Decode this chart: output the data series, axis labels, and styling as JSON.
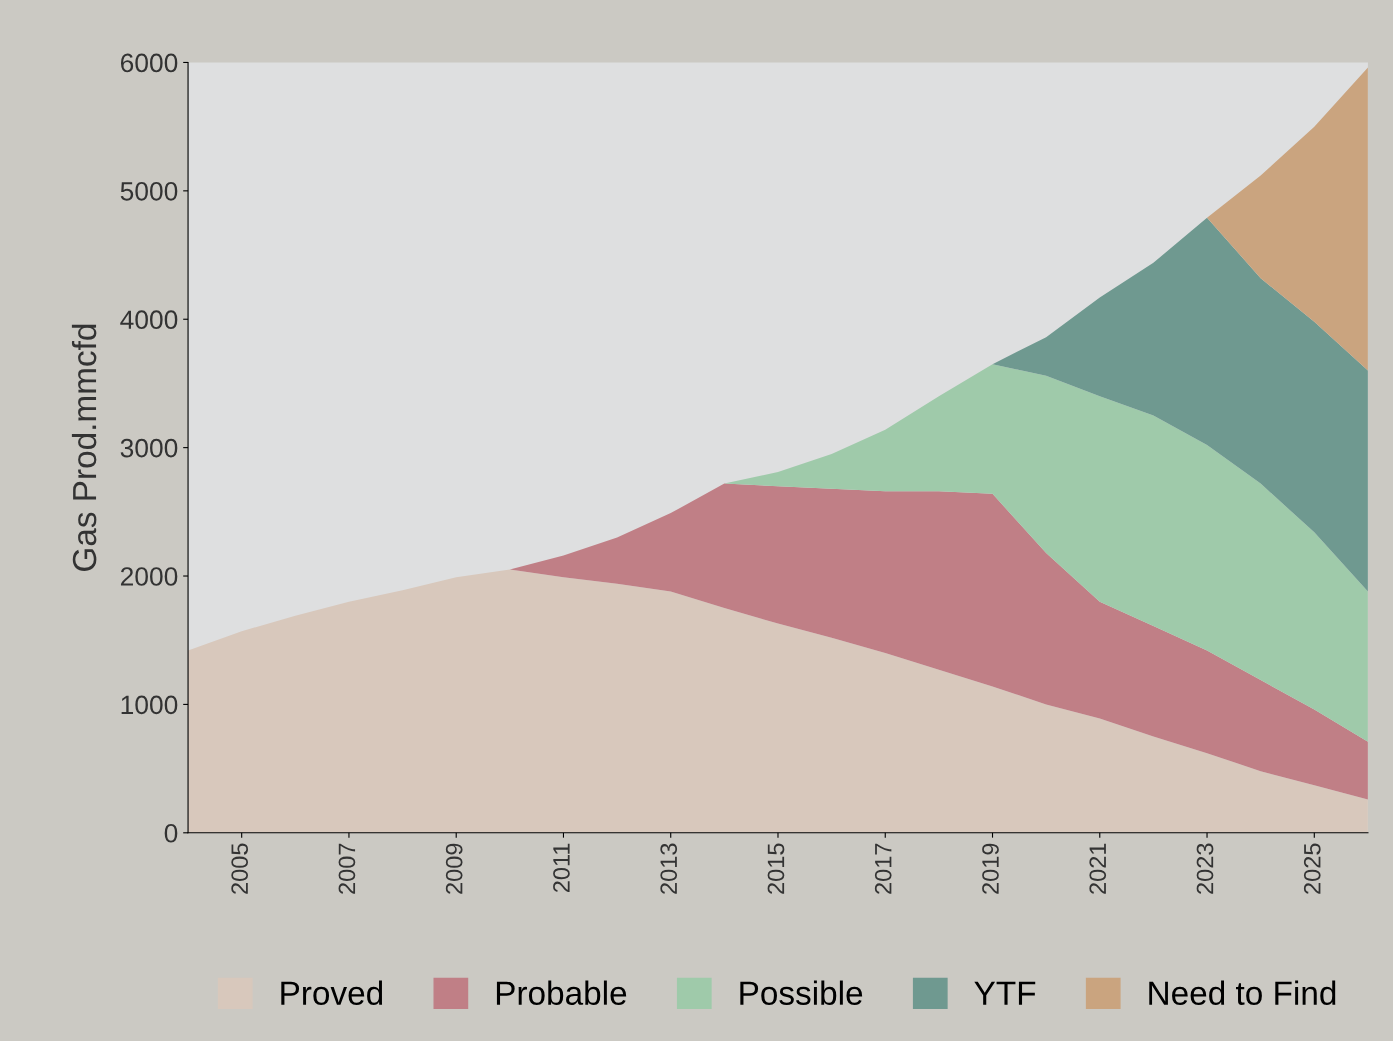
{
  "chart_data": {
    "type": "area",
    "stacked": true,
    "ylabel": "Gas Prod.mmcfd",
    "x": [
      2004,
      2005,
      2006,
      2007,
      2008,
      2009,
      2010,
      2011,
      2012,
      2013,
      2014,
      2015,
      2016,
      2017,
      2018,
      2019,
      2020,
      2021,
      2022,
      2023,
      2024,
      2025,
      2026
    ],
    "xlim": [
      2004,
      2026
    ],
    "xticks": [
      2005,
      2007,
      2009,
      2011,
      2013,
      2015,
      2017,
      2019,
      2021,
      2023,
      2025
    ],
    "ylim": [
      0,
      6000
    ],
    "yticks": [
      0,
      1000,
      2000,
      3000,
      4000,
      5000,
      6000
    ],
    "grid": false,
    "legend": "bottom",
    "series": [
      {
        "name": "Proved",
        "color": "#d8c8bc",
        "values": [
          1420,
          1570,
          1690,
          1800,
          1890,
          1990,
          2050,
          1990,
          1940,
          1880,
          1750,
          1630,
          1520,
          1400,
          1270,
          1140,
          1000,
          890,
          750,
          620,
          480,
          370,
          260
        ]
      },
      {
        "name": "Probable",
        "color": "#c07f86",
        "values": [
          null,
          null,
          null,
          null,
          null,
          null,
          0,
          170,
          360,
          610,
          970,
          1070,
          1160,
          1260,
          1390,
          1500,
          1180,
          910,
          860,
          800,
          710,
          590,
          450
        ]
      },
      {
        "name": "Possible",
        "color": "#9fcaaa",
        "values": [
          null,
          null,
          null,
          null,
          null,
          null,
          null,
          null,
          null,
          null,
          0,
          110,
          270,
          480,
          740,
          1010,
          1380,
          1600,
          1640,
          1600,
          1530,
          1380,
          1170
        ]
      },
      {
        "name": "YTF",
        "color": "#6f9990",
        "values": [
          null,
          null,
          null,
          null,
          null,
          null,
          null,
          null,
          null,
          null,
          null,
          null,
          null,
          null,
          null,
          0,
          300,
          770,
          1190,
          1770,
          1600,
          1640,
          1720
        ]
      },
      {
        "name": "Need to Find",
        "color": "#caa47f",
        "values": [
          null,
          null,
          null,
          null,
          null,
          null,
          null,
          null,
          null,
          null,
          null,
          null,
          null,
          null,
          null,
          null,
          null,
          null,
          null,
          0,
          800,
          1520,
          2360
        ]
      }
    ]
  }
}
